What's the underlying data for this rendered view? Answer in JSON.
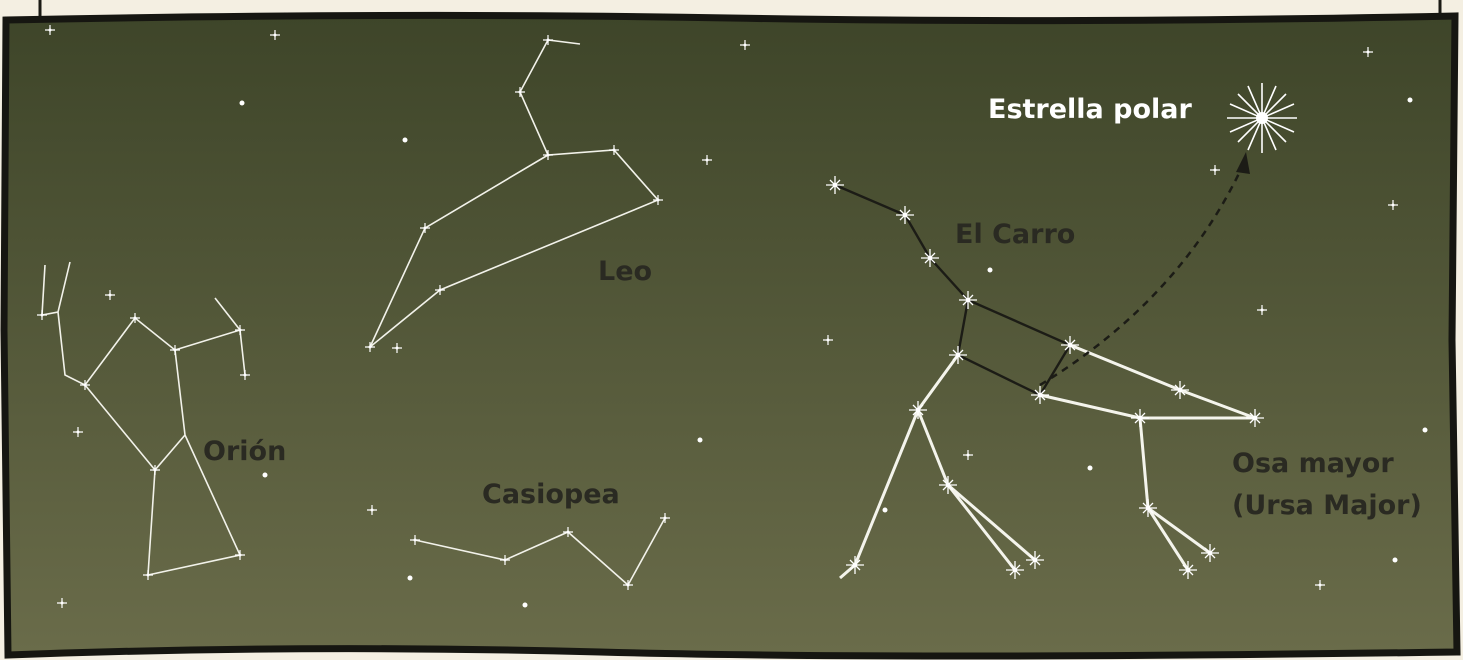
{
  "labels": {
    "polar_star": "Estrella polar",
    "big_dipper": "El Carro",
    "leo": "Leo",
    "orion": "Orión",
    "cassiopeia": "Casiopea",
    "ursa_major": [
      "Osa mayor",
      "(Ursa Major)"
    ]
  }
}
